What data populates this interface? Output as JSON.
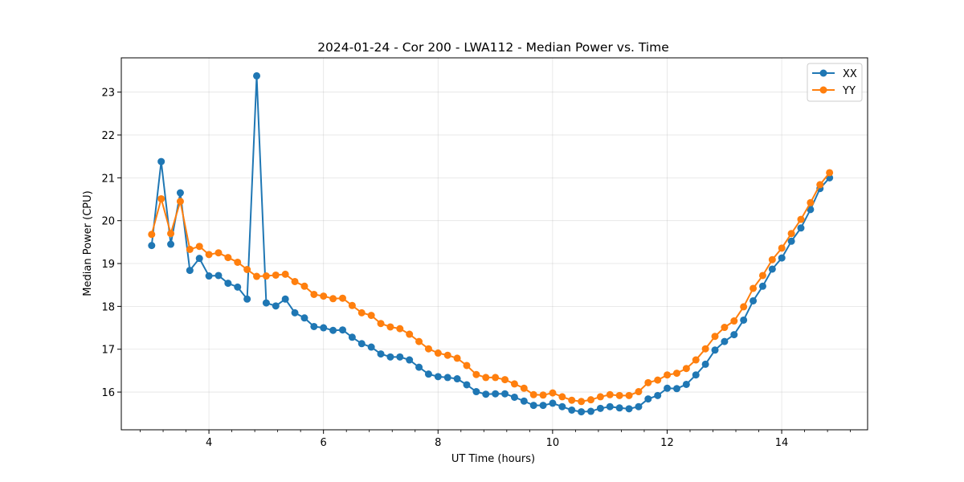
{
  "chart_data": {
    "type": "line",
    "title": "2024-01-24 - Cor 200 - LWA112 - Median Power vs. Time",
    "xlabel": "UT Time (hours)",
    "ylabel": "Median Power (CPU)",
    "xlim": [
      2.47,
      15.5
    ],
    "ylim": [
      15.12,
      23.8
    ],
    "xticks": [
      4,
      6,
      8,
      10,
      12,
      14
    ],
    "xtick_labels": [
      "4",
      "6",
      "8",
      "10",
      "12",
      "14"
    ],
    "xminor_step": 0.4,
    "yticks": [
      16,
      17,
      18,
      19,
      20,
      21,
      22,
      23
    ],
    "ytick_labels": [
      "16",
      "17",
      "18",
      "19",
      "20",
      "21",
      "22",
      "23"
    ],
    "grid": true,
    "legend_position": "top-right",
    "x_start": 3.0,
    "x_step": 0.1667,
    "series": [
      {
        "name": "XX",
        "color": "#1f77b4",
        "values": [
          19.42,
          21.38,
          19.45,
          20.65,
          18.84,
          19.12,
          18.71,
          18.72,
          18.54,
          18.45,
          18.17,
          23.38,
          18.08,
          18.01,
          18.17,
          17.85,
          17.73,
          17.53,
          17.5,
          17.44,
          17.45,
          17.28,
          17.13,
          17.05,
          16.89,
          16.82,
          16.82,
          16.75,
          16.58,
          16.42,
          16.36,
          16.34,
          16.31,
          16.17,
          16.01,
          15.95,
          15.96,
          15.96,
          15.88,
          15.79,
          15.69,
          15.69,
          15.74,
          15.66,
          15.58,
          15.54,
          15.55,
          15.62,
          15.66,
          15.63,
          15.61,
          15.66,
          15.84,
          15.92,
          16.09,
          16.08,
          16.18,
          16.4,
          16.65,
          16.98,
          17.18,
          17.34,
          17.68,
          18.13,
          18.47,
          18.87,
          19.13,
          19.52,
          19.83,
          20.26,
          20.75,
          21.0
        ]
      },
      {
        "name": "YY",
        "color": "#ff7f0e",
        "values": [
          19.68,
          20.51,
          19.7,
          20.45,
          19.33,
          19.4,
          19.21,
          19.25,
          19.14,
          19.03,
          18.86,
          18.7,
          18.71,
          18.73,
          18.75,
          18.58,
          18.47,
          18.28,
          18.24,
          18.18,
          18.19,
          18.02,
          17.85,
          17.79,
          17.6,
          17.52,
          17.48,
          17.35,
          17.18,
          17.01,
          16.91,
          16.86,
          16.79,
          16.62,
          16.41,
          16.34,
          16.34,
          16.29,
          16.19,
          16.09,
          15.94,
          15.93,
          15.98,
          15.89,
          15.81,
          15.78,
          15.82,
          15.89,
          15.94,
          15.92,
          15.92,
          16.01,
          16.22,
          16.28,
          16.4,
          16.44,
          16.55,
          16.75,
          17.01,
          17.3,
          17.51,
          17.66,
          17.99,
          18.42,
          18.72,
          19.09,
          19.36,
          19.7,
          20.03,
          20.42,
          20.84,
          21.12
        ]
      }
    ]
  }
}
